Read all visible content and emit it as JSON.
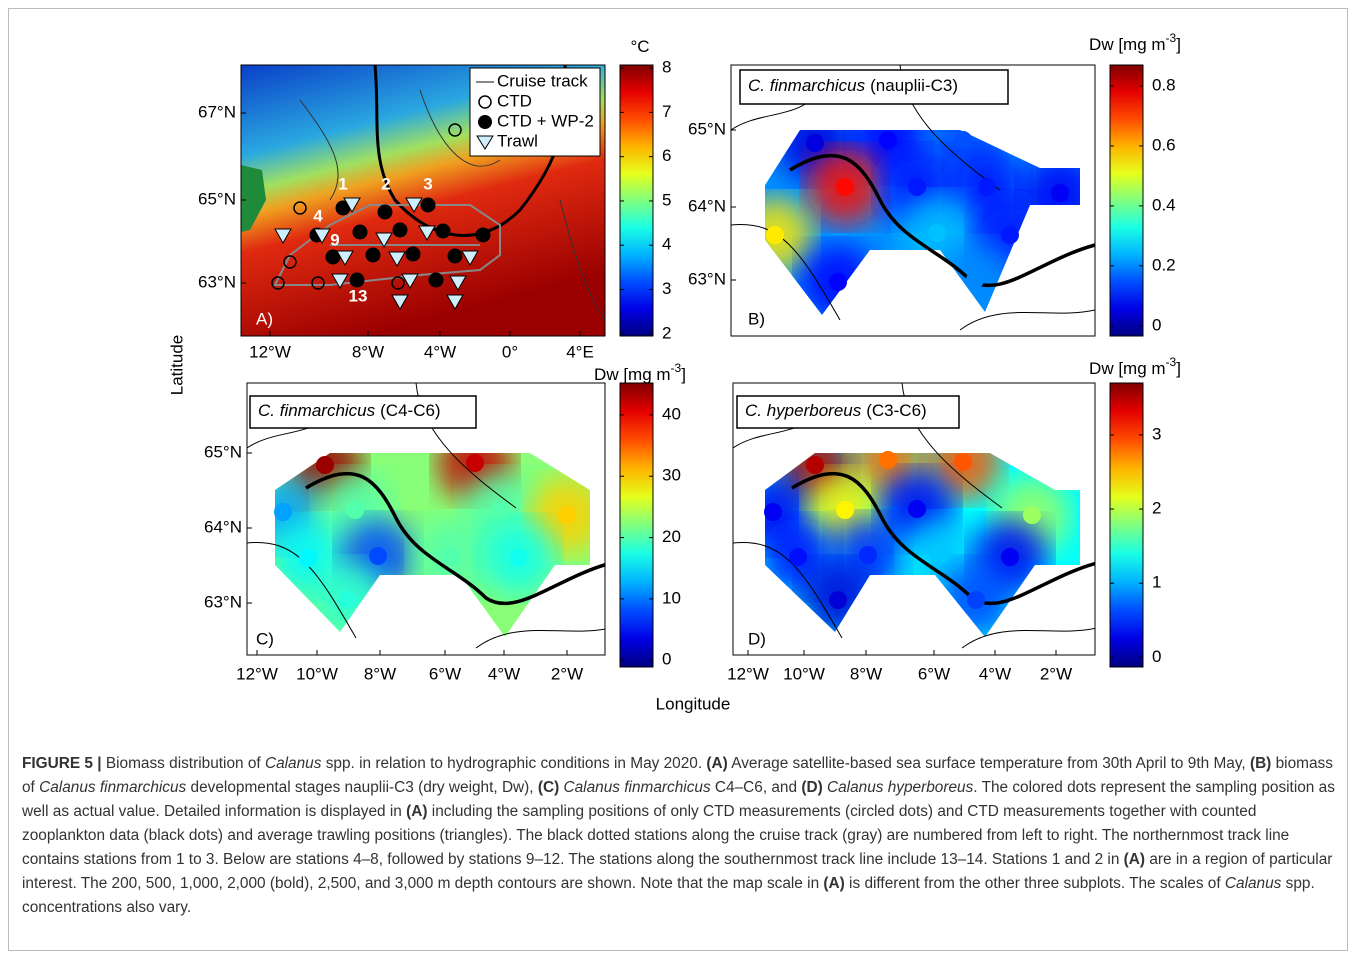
{
  "figure": {
    "y_label": "Latitude",
    "x_label": "Longitude",
    "panels": [
      {
        "letter": "A)",
        "lat_ticks": [
          "67°N",
          "65°N",
          "63°N"
        ],
        "lon_ticks": [
          "12°W",
          "8°W",
          "4°W",
          "0°",
          "4°E"
        ],
        "legend": [
          "Cruise track",
          "CTD",
          "CTD + WP-2",
          "Trawl"
        ],
        "stations": [
          "1",
          "2",
          "3",
          "4",
          "9",
          "13"
        ],
        "colorbar": {
          "label": "°C",
          "lim": [
            1.95,
            8.07
          ],
          "ticks": [
            2,
            3,
            4,
            5,
            6,
            7,
            8
          ]
        }
      },
      {
        "letter": "B)",
        "title_species": "C. finmarchicus",
        "title_stage": "(nauplii-C3)",
        "lat_ticks": [
          "65°N",
          "64°N",
          "63°N"
        ],
        "colorbar": {
          "label": "Dw [mg m",
          "label_sup": "-3",
          "label_end": "]",
          "lim": [
            -0.034,
            0.87
          ],
          "ticks": [
            0,
            0.2,
            0.4,
            0.6,
            0.8
          ]
        },
        "values": [
          0.05,
          0.08,
          0.15,
          0.75,
          0.1,
          0.1,
          0.07,
          0.55,
          0.25,
          0.1,
          0.08,
          0.2
        ]
      },
      {
        "letter": "C)",
        "title_species": "C. finmarchicus",
        "title_stage": "(C4-C6)",
        "lat_ticks": [
          "65°N",
          "64°N",
          "63°N"
        ],
        "lon_ticks": [
          "12°W",
          "10°W",
          "8°W",
          "6°W",
          "4°W",
          "2°W"
        ],
        "colorbar": {
          "label": "Dw [mg m",
          "label_sup": "-3",
          "label_end": "]",
          "lim": [
            -1.1,
            45.2
          ],
          "ticks": [
            0,
            10,
            20,
            30,
            40
          ]
        },
        "values": [
          44,
          42,
          12,
          20,
          20,
          30,
          16,
          8,
          20,
          17,
          18
        ]
      },
      {
        "letter": "D)",
        "title_species": "C. hyperboreus",
        "title_stage": "(C3-C6)",
        "lon_ticks": [
          "12°W",
          "10°W",
          "8°W",
          "6°W",
          "4°W",
          "2°W"
        ],
        "colorbar": {
          "label": "Dw [mg m",
          "label_sup": "-3",
          "label_end": "]",
          "lim": [
            -0.13,
            3.7
          ],
          "ticks": [
            0,
            1,
            2,
            3
          ]
        },
        "values": [
          3.5,
          2.8,
          2.9,
          0.3,
          2.3,
          0.3,
          1.9,
          0.4,
          0.5,
          1.1,
          0.3,
          0.2,
          0.6
        ]
      }
    ]
  },
  "caption": [
    {
      "text": "FIGURE 5 | ",
      "style": "bold"
    },
    {
      "text": "Biomass distribution of "
    },
    {
      "text": "Calanus",
      "style": "italic"
    },
    {
      "text": " spp. in relation to hydrographic conditions in May 2020. "
    },
    {
      "text": "(A)",
      "style": "bold"
    },
    {
      "text": " Average satellite-based sea surface temperature from 30th April to 9th May, "
    },
    {
      "text": "(B)",
      "style": "bold"
    },
    {
      "text": " biomass of "
    },
    {
      "text": "Calanus finmarchicus",
      "style": "italic"
    },
    {
      "text": " developmental stages nauplii-C3 (dry weight, Dw), "
    },
    {
      "text": "(C)",
      "style": "bold"
    },
    {
      "text": " Calanus finmarchicus",
      "style": "italic"
    },
    {
      "text": " C4–C6, and "
    },
    {
      "text": "(D)",
      "style": "bold"
    },
    {
      "text": " Calanus hyperboreus",
      "style": "italic"
    },
    {
      "text": ". The colored dots represent the sampling position as well as actual value. Detailed information is displayed in "
    },
    {
      "text": "(A)",
      "style": "bold"
    },
    {
      "text": " including the sampling positions of only CTD measurements (circled dots) and CTD measurements together with counted zooplankton data (black dots) and average trawling positions (triangles). The black dotted stations along the cruise track (gray) are numbered from left to right. The northernmost track line contains stations from 1 to 3. Below are stations 4–8, followed by stations 9–12. The stations along the southernmost track line include 13–14. Stations 1 and 2 in "
    },
    {
      "text": "(A)",
      "style": "bold"
    },
    {
      "text": " are in a region of particular interest. The 200, 500, 1,000, 2,000 (bold), 2,500, and 3,000 m depth contours are shown. Note that the map scale in "
    },
    {
      "text": "(A)",
      "style": "bold"
    },
    {
      "text": " is different from the other three subplots. The scales of "
    },
    {
      "text": "Calanus",
      "style": "italic"
    },
    {
      "text": " spp. concentrations also vary."
    }
  ]
}
